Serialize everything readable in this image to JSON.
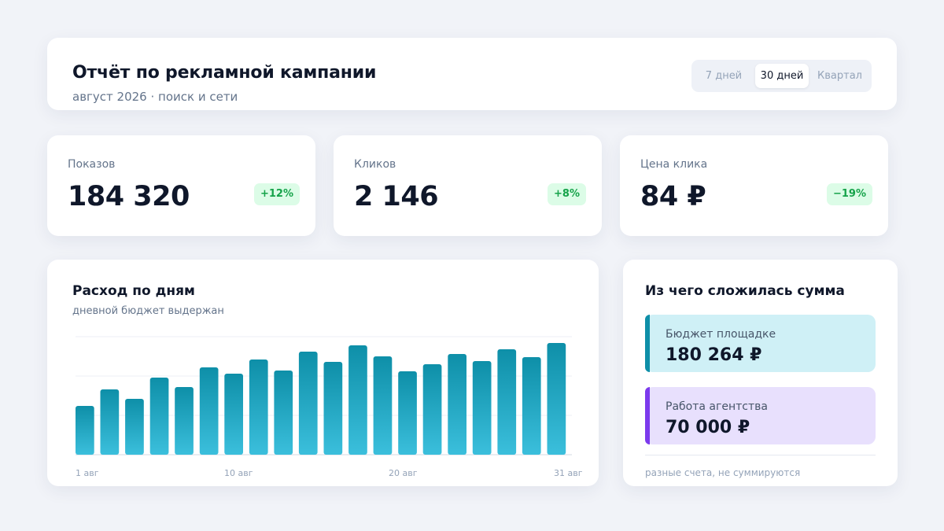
{
  "header": {
    "title": "Отчёт по рекламной кампании",
    "subtitle": "август 2026 · поиск и сети",
    "periods": [
      "7 дней",
      "30 дней",
      "Квартал"
    ],
    "selected_period": "30 дней"
  },
  "kpis": [
    {
      "label": "Показов",
      "value": "184 320",
      "change": "+12%"
    },
    {
      "label": "Кликов",
      "value": "2 146",
      "change": "+8%"
    },
    {
      "label": "Цена клика",
      "value": "84 ₽",
      "change": "−19%"
    }
  ],
  "colors": {
    "accent": "#0e8fa8",
    "bar_top": "#0e8fa8",
    "bar_bottom": "#3bbfdc",
    "badge_bg": "#dcfce7",
    "badge_text": "#16a34a",
    "purple": "#7c3aed"
  },
  "spend_chart": {
    "title": "Расход по дням",
    "subtitle": "дневной бюджет выдержан"
  },
  "chart_data": {
    "type": "bar",
    "title": "Расход по дням",
    "subtitle": "дневной бюджет выдержан",
    "tick_labels": [
      "1 авг",
      "10 авг",
      "20 авг",
      "31 авг"
    ],
    "values": [
      62,
      83,
      71,
      98,
      86,
      111,
      103,
      121,
      107,
      131,
      118,
      139,
      125,
      106,
      115,
      128,
      119,
      134,
      124,
      142
    ],
    "ylim": [
      0,
      150
    ],
    "grid": true,
    "xlabel": "",
    "ylabel": ""
  },
  "breakdown": {
    "title": "Из чего сложилась сумма",
    "items": [
      {
        "label": "Бюджет площадке",
        "value": "180 264 ₽"
      },
      {
        "label": "Работа агентства",
        "value": "70 000 ₽"
      }
    ],
    "note": "разные счета, не суммируются"
  }
}
